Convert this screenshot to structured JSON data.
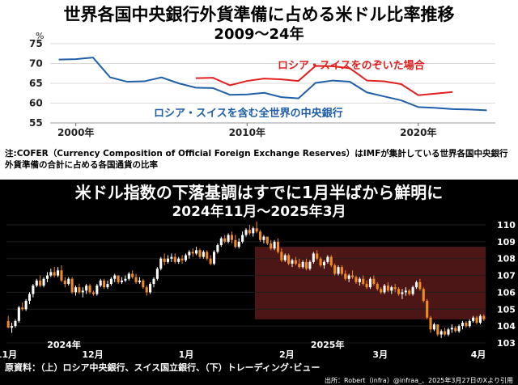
{
  "top": {
    "title": "世界各国中央銀行外貨準備に占める米ドル比率推移",
    "subtitle": "2009～24年",
    "note": "注:COFER（Currency Composition of Official Foreign Exchange Reserves）はIMFが集計している世界各国中央銀行外貨準備の合計に占める各国通貨の比率"
  },
  "bottom": {
    "title": "米ドル指数の下落基調はすでに1月半ばから鮮明に",
    "subtitle": "2024年11月～2025年3月",
    "source": "原資料：（上）ロシア中央銀行、スイス国立銀行、（下）トレーディング･ビュー",
    "credit": "出所：Robert（infra）@infraa_、2025年3月27日のXより引用"
  },
  "chart_data": [
    {
      "type": "line",
      "title": "世界各国中央銀行外貨準備に占める米ドル比率推移",
      "subtitle": "2009～24年",
      "ylabel": "%",
      "ylim": [
        55,
        75
      ],
      "yticks": [
        55,
        60,
        65,
        70,
        75
      ],
      "xlim": [
        1998.5,
        2024.5
      ],
      "xticks": [
        {
          "value": 2000,
          "label": "2000年"
        },
        {
          "value": 2010,
          "label": "2010年"
        },
        {
          "value": 2020,
          "label": "2020年"
        }
      ],
      "colors": {
        "series1": "#1f5fa8",
        "series2": "#e02020"
      },
      "series": [
        {
          "name": "ロシア・スイスを含む全世界の中央銀行",
          "color": "#1f5fa8",
          "x": [
            1999,
            2000,
            2001,
            2002,
            2003,
            2004,
            2005,
            2006,
            2007,
            2008,
            2009,
            2010,
            2011,
            2012,
            2013,
            2014,
            2015,
            2016,
            2017,
            2018,
            2019,
            2020,
            2021,
            2022,
            2023,
            2024
          ],
          "values": [
            71.0,
            71.1,
            71.5,
            66.5,
            65.4,
            65.5,
            66.5,
            65.0,
            63.9,
            63.8,
            62.1,
            62.2,
            62.6,
            61.5,
            61.2,
            65.1,
            65.7,
            65.4,
            62.7,
            61.7,
            60.7,
            59.0,
            58.8,
            58.5,
            58.4,
            58.2
          ]
        },
        {
          "name": "ロシア・スイスをのぞいた場合",
          "color": "#e02020",
          "x": [
            2007,
            2008,
            2009,
            2010,
            2011,
            2012,
            2013,
            2014,
            2015,
            2016,
            2017,
            2018,
            2019,
            2020,
            2021,
            2022
          ],
          "values": [
            66.3,
            66.4,
            64.5,
            65.6,
            66.2,
            66.0,
            65.6,
            69.4,
            69.3,
            68.8,
            65.7,
            65.5,
            64.8,
            62.0,
            62.4,
            62.8
          ]
        }
      ]
    },
    {
      "type": "candlestick",
      "title": "米ドル指数の下落基調はすでに1月半ばから鮮明に",
      "subtitle": "2024年11月～2025年3月",
      "ylim": [
        103,
        110
      ],
      "yticks": [
        103,
        104,
        105,
        106,
        107,
        108,
        109,
        110
      ],
      "xticks": [
        "11月",
        "12月",
        "1月",
        "2月",
        "3月",
        "4月"
      ],
      "year_labels": [
        "2024年",
        "2025年"
      ],
      "up_color": "#ffffff",
      "down_color": "#f08a24",
      "highlight_start_index": 70,
      "candles": [
        [
          104.3,
          104.6,
          103.9,
          103.9
        ],
        [
          103.9,
          104.2,
          103.6,
          104.0
        ],
        [
          104.0,
          104.4,
          103.9,
          104.3
        ],
        [
          104.3,
          105.2,
          104.2,
          105.1
        ],
        [
          105.1,
          105.4,
          104.9,
          105.0
        ],
        [
          105.0,
          105.6,
          104.9,
          105.5
        ],
        [
          105.5,
          106.0,
          105.3,
          105.9
        ],
        [
          105.9,
          106.5,
          105.7,
          106.4
        ],
        [
          106.4,
          106.8,
          106.3,
          106.7
        ],
        [
          106.7,
          107.0,
          106.3,
          106.4
        ],
        [
          106.4,
          106.9,
          106.3,
          106.8
        ],
        [
          106.8,
          107.2,
          106.6,
          107.0
        ],
        [
          107.0,
          107.4,
          106.9,
          107.2
        ],
        [
          107.2,
          107.5,
          106.9,
          107.0
        ],
        [
          107.0,
          107.5,
          106.9,
          107.3
        ],
        [
          107.3,
          107.6,
          106.6,
          106.7
        ],
        [
          106.7,
          106.9,
          106.3,
          106.5
        ],
        [
          106.5,
          106.9,
          106.4,
          106.8
        ],
        [
          106.8,
          106.9,
          105.9,
          106.0
        ],
        [
          106.0,
          106.4,
          105.8,
          106.3
        ],
        [
          106.3,
          106.5,
          105.9,
          106.0
        ],
        [
          106.0,
          106.3,
          105.7,
          106.1
        ],
        [
          106.1,
          106.5,
          105.9,
          106.4
        ],
        [
          106.4,
          106.5,
          105.9,
          106.0
        ],
        [
          106.0,
          106.1,
          105.8,
          105.9
        ],
        [
          105.9,
          106.5,
          105.8,
          106.4
        ],
        [
          106.4,
          106.8,
          106.3,
          106.7
        ],
        [
          106.7,
          106.8,
          106.2,
          106.3
        ],
        [
          106.3,
          106.7,
          106.2,
          106.5
        ],
        [
          106.5,
          106.9,
          106.4,
          106.8
        ],
        [
          106.8,
          107.1,
          106.6,
          107.0
        ],
        [
          107.0,
          107.0,
          106.5,
          106.6
        ],
        [
          106.6,
          106.9,
          106.5,
          106.7
        ],
        [
          106.7,
          107.0,
          106.6,
          106.8
        ],
        [
          106.8,
          107.2,
          106.7,
          107.1
        ],
        [
          107.1,
          107.3,
          106.8,
          106.9
        ],
        [
          106.9,
          107.1,
          106.5,
          106.6
        ],
        [
          106.6,
          106.9,
          106.5,
          106.7
        ],
        [
          106.7,
          106.8,
          106.2,
          106.3
        ],
        [
          106.3,
          106.4,
          105.8,
          106.0
        ],
        [
          106.0,
          106.6,
          105.9,
          106.5
        ],
        [
          106.5,
          106.9,
          106.3,
          106.8
        ],
        [
          106.8,
          107.5,
          106.7,
          107.4
        ],
        [
          107.4,
          108.1,
          107.3,
          108.0
        ],
        [
          108.0,
          108.3,
          107.6,
          107.8
        ],
        [
          107.8,
          108.2,
          107.7,
          108.0
        ],
        [
          108.0,
          108.3,
          107.8,
          108.1
        ],
        [
          108.1,
          108.3,
          107.7,
          107.8
        ],
        [
          107.8,
          108.1,
          107.7,
          108.0
        ],
        [
          108.0,
          108.2,
          107.7,
          107.9
        ],
        [
          107.9,
          108.3,
          107.8,
          108.2
        ],
        [
          108.2,
          108.5,
          108.0,
          108.4
        ],
        [
          108.4,
          108.6,
          108.1,
          108.3
        ],
        [
          108.3,
          108.7,
          108.2,
          108.5
        ],
        [
          108.5,
          108.6,
          108.0,
          108.1
        ],
        [
          108.1,
          108.5,
          108.0,
          108.4
        ],
        [
          108.4,
          108.5,
          107.9,
          108.0
        ],
        [
          108.0,
          108.2,
          107.6,
          107.7
        ],
        [
          107.7,
          108.5,
          107.6,
          108.4
        ],
        [
          108.4,
          108.9,
          108.3,
          108.8
        ],
        [
          108.8,
          109.3,
          108.7,
          109.2
        ],
        [
          109.2,
          109.4,
          108.9,
          109.0
        ],
        [
          109.0,
          109.5,
          108.9,
          109.4
        ],
        [
          109.4,
          109.6,
          108.9,
          109.1
        ],
        [
          109.1,
          109.4,
          108.6,
          108.7
        ],
        [
          108.7,
          109.2,
          108.6,
          109.0
        ],
        [
          109.0,
          109.6,
          108.9,
          109.4
        ],
        [
          109.4,
          109.8,
          109.3,
          109.7
        ],
        [
          109.7,
          110.0,
          109.4,
          109.5
        ],
        [
          109.5,
          109.9,
          109.3,
          109.8
        ],
        [
          109.8,
          110.2,
          109.5,
          109.6
        ],
        [
          109.6,
          109.7,
          109.0,
          109.1
        ],
        [
          109.1,
          109.4,
          108.9,
          109.3
        ],
        [
          109.3,
          109.3,
          108.8,
          108.9
        ],
        [
          108.9,
          109.1,
          108.5,
          108.6
        ],
        [
          108.6,
          109.1,
          108.5,
          109.0
        ],
        [
          109.0,
          109.2,
          108.3,
          108.4
        ],
        [
          108.4,
          108.6,
          107.8,
          107.9
        ],
        [
          107.9,
          108.3,
          107.8,
          108.2
        ],
        [
          108.2,
          108.3,
          107.6,
          107.7
        ],
        [
          107.7,
          108.0,
          107.5,
          107.9
        ],
        [
          107.9,
          108.1,
          107.6,
          107.7
        ],
        [
          107.7,
          108.0,
          107.4,
          107.5
        ],
        [
          107.5,
          107.9,
          107.4,
          107.8
        ],
        [
          107.8,
          108.0,
          107.3,
          107.4
        ],
        [
          107.4,
          107.9,
          107.3,
          107.8
        ],
        [
          107.8,
          108.4,
          107.7,
          108.3
        ],
        [
          108.3,
          108.5,
          107.9,
          108.0
        ],
        [
          108.0,
          108.1,
          107.5,
          107.6
        ],
        [
          107.6,
          107.9,
          107.4,
          107.8
        ],
        [
          107.8,
          108.2,
          107.7,
          108.1
        ],
        [
          108.1,
          108.2,
          107.5,
          107.6
        ],
        [
          107.6,
          107.7,
          107.0,
          107.1
        ],
        [
          107.1,
          107.6,
          107.0,
          107.5
        ],
        [
          107.5,
          107.6,
          107.0,
          107.1
        ],
        [
          107.1,
          107.3,
          106.7,
          106.8
        ],
        [
          106.8,
          107.1,
          106.6,
          107.0
        ],
        [
          107.0,
          107.3,
          106.8,
          106.9
        ],
        [
          106.9,
          107.0,
          106.5,
          106.6
        ],
        [
          106.6,
          106.9,
          106.4,
          106.8
        ],
        [
          106.8,
          107.0,
          106.4,
          106.5
        ],
        [
          106.5,
          106.7,
          106.2,
          106.3
        ],
        [
          106.3,
          106.9,
          106.2,
          106.8
        ],
        [
          106.8,
          107.0,
          106.4,
          106.5
        ],
        [
          106.5,
          106.6,
          106.1,
          106.2
        ],
        [
          106.2,
          106.3,
          105.9,
          106.0
        ],
        [
          106.0,
          106.5,
          105.9,
          106.4
        ],
        [
          106.4,
          106.6,
          106.0,
          106.1
        ],
        [
          106.1,
          106.4,
          105.9,
          106.3
        ],
        [
          106.3,
          106.5,
          106.0,
          106.2
        ],
        [
          106.2,
          106.3,
          105.8,
          105.9
        ],
        [
          105.9,
          106.2,
          105.6,
          106.0
        ],
        [
          106.0,
          106.3,
          105.8,
          106.1
        ],
        [
          106.1,
          106.2,
          105.8,
          105.9
        ],
        [
          105.9,
          106.4,
          105.8,
          106.3
        ],
        [
          106.3,
          106.7,
          106.2,
          106.6
        ],
        [
          106.6,
          106.8,
          106.1,
          106.2
        ],
        [
          106.2,
          106.3,
          105.4,
          105.5
        ],
        [
          105.5,
          105.6,
          104.4,
          104.5
        ],
        [
          104.5,
          104.6,
          103.6,
          103.8
        ],
        [
          103.8,
          104.2,
          103.7,
          104.1
        ],
        [
          104.1,
          104.1,
          103.4,
          103.5
        ],
        [
          103.5,
          103.8,
          103.3,
          103.7
        ],
        [
          103.7,
          103.9,
          103.4,
          103.5
        ],
        [
          103.5,
          103.9,
          103.4,
          103.8
        ],
        [
          103.8,
          104.1,
          103.6,
          103.9
        ],
        [
          103.9,
          104.0,
          103.6,
          103.7
        ],
        [
          103.7,
          104.1,
          103.6,
          104.0
        ],
        [
          104.0,
          104.3,
          103.8,
          104.2
        ],
        [
          104.2,
          104.3,
          103.9,
          104.0
        ],
        [
          104.0,
          104.4,
          103.9,
          104.3
        ],
        [
          104.3,
          104.6,
          104.2,
          104.5
        ],
        [
          104.5,
          104.6,
          104.1,
          104.2
        ],
        [
          104.2,
          104.7,
          104.1,
          104.6
        ],
        [
          104.6,
          104.7,
          104.3,
          104.4
        ]
      ]
    }
  ]
}
